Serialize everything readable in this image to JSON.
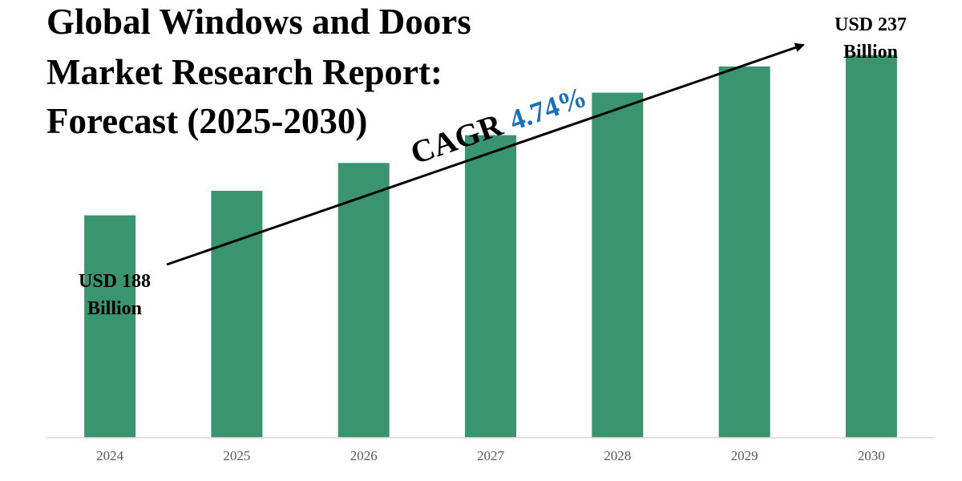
{
  "chart_data": {
    "type": "bar",
    "title_lines": [
      "Global Windows and Doors",
      "Market Research Report:",
      "Forecast (2025-2030)"
    ],
    "categories": [
      "2024",
      "2025",
      "2026",
      "2027",
      "2028",
      "2029",
      "2030"
    ],
    "values": [
      188,
      195.5,
      204,
      212.5,
      225.5,
      233.5,
      237
    ],
    "ylim": [
      120,
      245
    ],
    "bar_color": "#3a9470",
    "axis_color": "#d9d9d9",
    "tick_color": "#595959",
    "cagr_color": "#1f6fb5",
    "annotations": {
      "start_line1": "USD 188",
      "start_line2": "Billion",
      "end_line1": "USD 237",
      "end_line2": "Billion",
      "cagr_label": "CAGR",
      "cagr_value": "4.74%"
    }
  }
}
